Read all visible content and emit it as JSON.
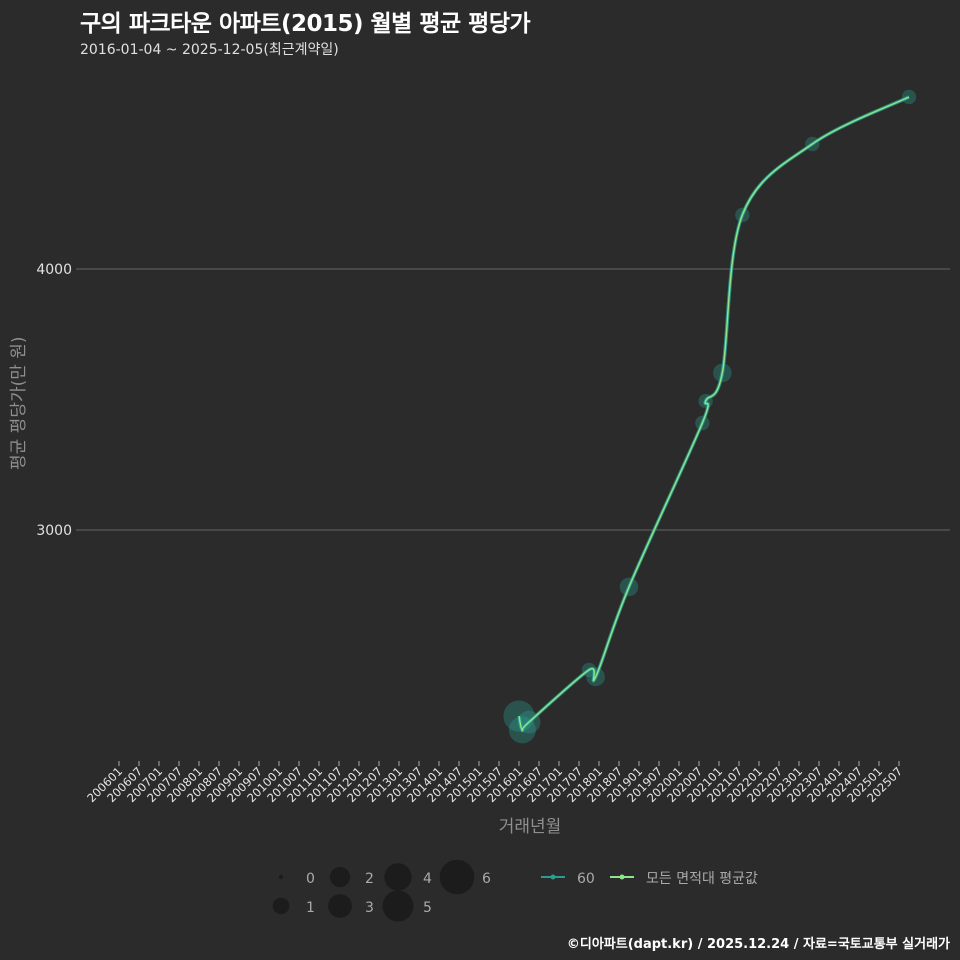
{
  "header": {
    "title": "구의 파크타운 아파트(2015) 월별 평균 평당가",
    "subtitle": "2016-01-04 ~ 2025-12-05(최근계약일)"
  },
  "axes": {
    "ylabel": "평균 평당가(만 원)",
    "xlabel": "거래년월"
  },
  "legend": {
    "size_title": "",
    "sizes": [
      "0",
      "1",
      "2",
      "3",
      "4",
      "5",
      "6"
    ],
    "series_60_label": "60",
    "series_avg_label": "모든 면적대 평균값"
  },
  "footer": {
    "credit": "©디아파트(dapt.kr) / 2025.12.24 / 자료=국토교통부 실거래가"
  },
  "colors": {
    "background": "#2b2b2b",
    "series_60": "#2a9d8f",
    "series_avg": "#8fe388",
    "grid": "#5a5a5a"
  },
  "chart_data": {
    "type": "line",
    "title": "구의 파크타운 아파트(2015) 월별 평균 평당가",
    "subtitle": "2016-01-04 ~ 2025-12-05(최근계약일)",
    "xlabel": "거래년월",
    "ylabel": "평균 평당가(만 원)",
    "x_ticks": [
      "200601",
      "200607",
      "200701",
      "200707",
      "200801",
      "200807",
      "200901",
      "200907",
      "201001",
      "201007",
      "201101",
      "201107",
      "201201",
      "201207",
      "201301",
      "201307",
      "201401",
      "201407",
      "201501",
      "201507",
      "201601",
      "201607",
      "201701",
      "201707",
      "201801",
      "201807",
      "201901",
      "201907",
      "202001",
      "202007",
      "202101",
      "202107",
      "202201",
      "202207",
      "202301",
      "202307",
      "202401",
      "202407",
      "202501",
      "202507"
    ],
    "y_ticks": [
      3000,
      4000
    ],
    "ylim": [
      2120,
      4720
    ],
    "grid": true,
    "legend_position": "bottom",
    "series": [
      {
        "name": "60",
        "points": [
          {
            "x": "201601",
            "y": 2287,
            "count": 6
          },
          {
            "x": "201602",
            "y": 2234,
            "count": 5
          },
          {
            "x": "201604",
            "y": 2264,
            "count": 4
          },
          {
            "x": "201710",
            "y": 2464,
            "count": 2
          },
          {
            "x": "201712",
            "y": 2437,
            "count": 3
          },
          {
            "x": "201810",
            "y": 2782,
            "count": 3
          },
          {
            "x": "202008",
            "y": 3410,
            "count": 2
          },
          {
            "x": "202009",
            "y": 3494,
            "count": 2
          },
          {
            "x": "202102",
            "y": 3602,
            "count": 3
          },
          {
            "x": "202108",
            "y": 4207,
            "count": 2
          },
          {
            "x": "202305",
            "y": 4479,
            "count": 2
          },
          {
            "x": "202510",
            "y": 4659,
            "count": 2
          }
        ]
      },
      {
        "name": "모든 면적대 평균값",
        "points": [
          {
            "x": "201601",
            "y": 2287
          },
          {
            "x": "201602",
            "y": 2234
          },
          {
            "x": "201604",
            "y": 2264
          },
          {
            "x": "201710",
            "y": 2464
          },
          {
            "x": "201712",
            "y": 2437
          },
          {
            "x": "201810",
            "y": 2782
          },
          {
            "x": "202008",
            "y": 3410
          },
          {
            "x": "202009",
            "y": 3494
          },
          {
            "x": "202102",
            "y": 3602
          },
          {
            "x": "202108",
            "y": 4207
          },
          {
            "x": "202305",
            "y": 4479
          },
          {
            "x": "202510",
            "y": 4659
          }
        ]
      }
    ]
  }
}
